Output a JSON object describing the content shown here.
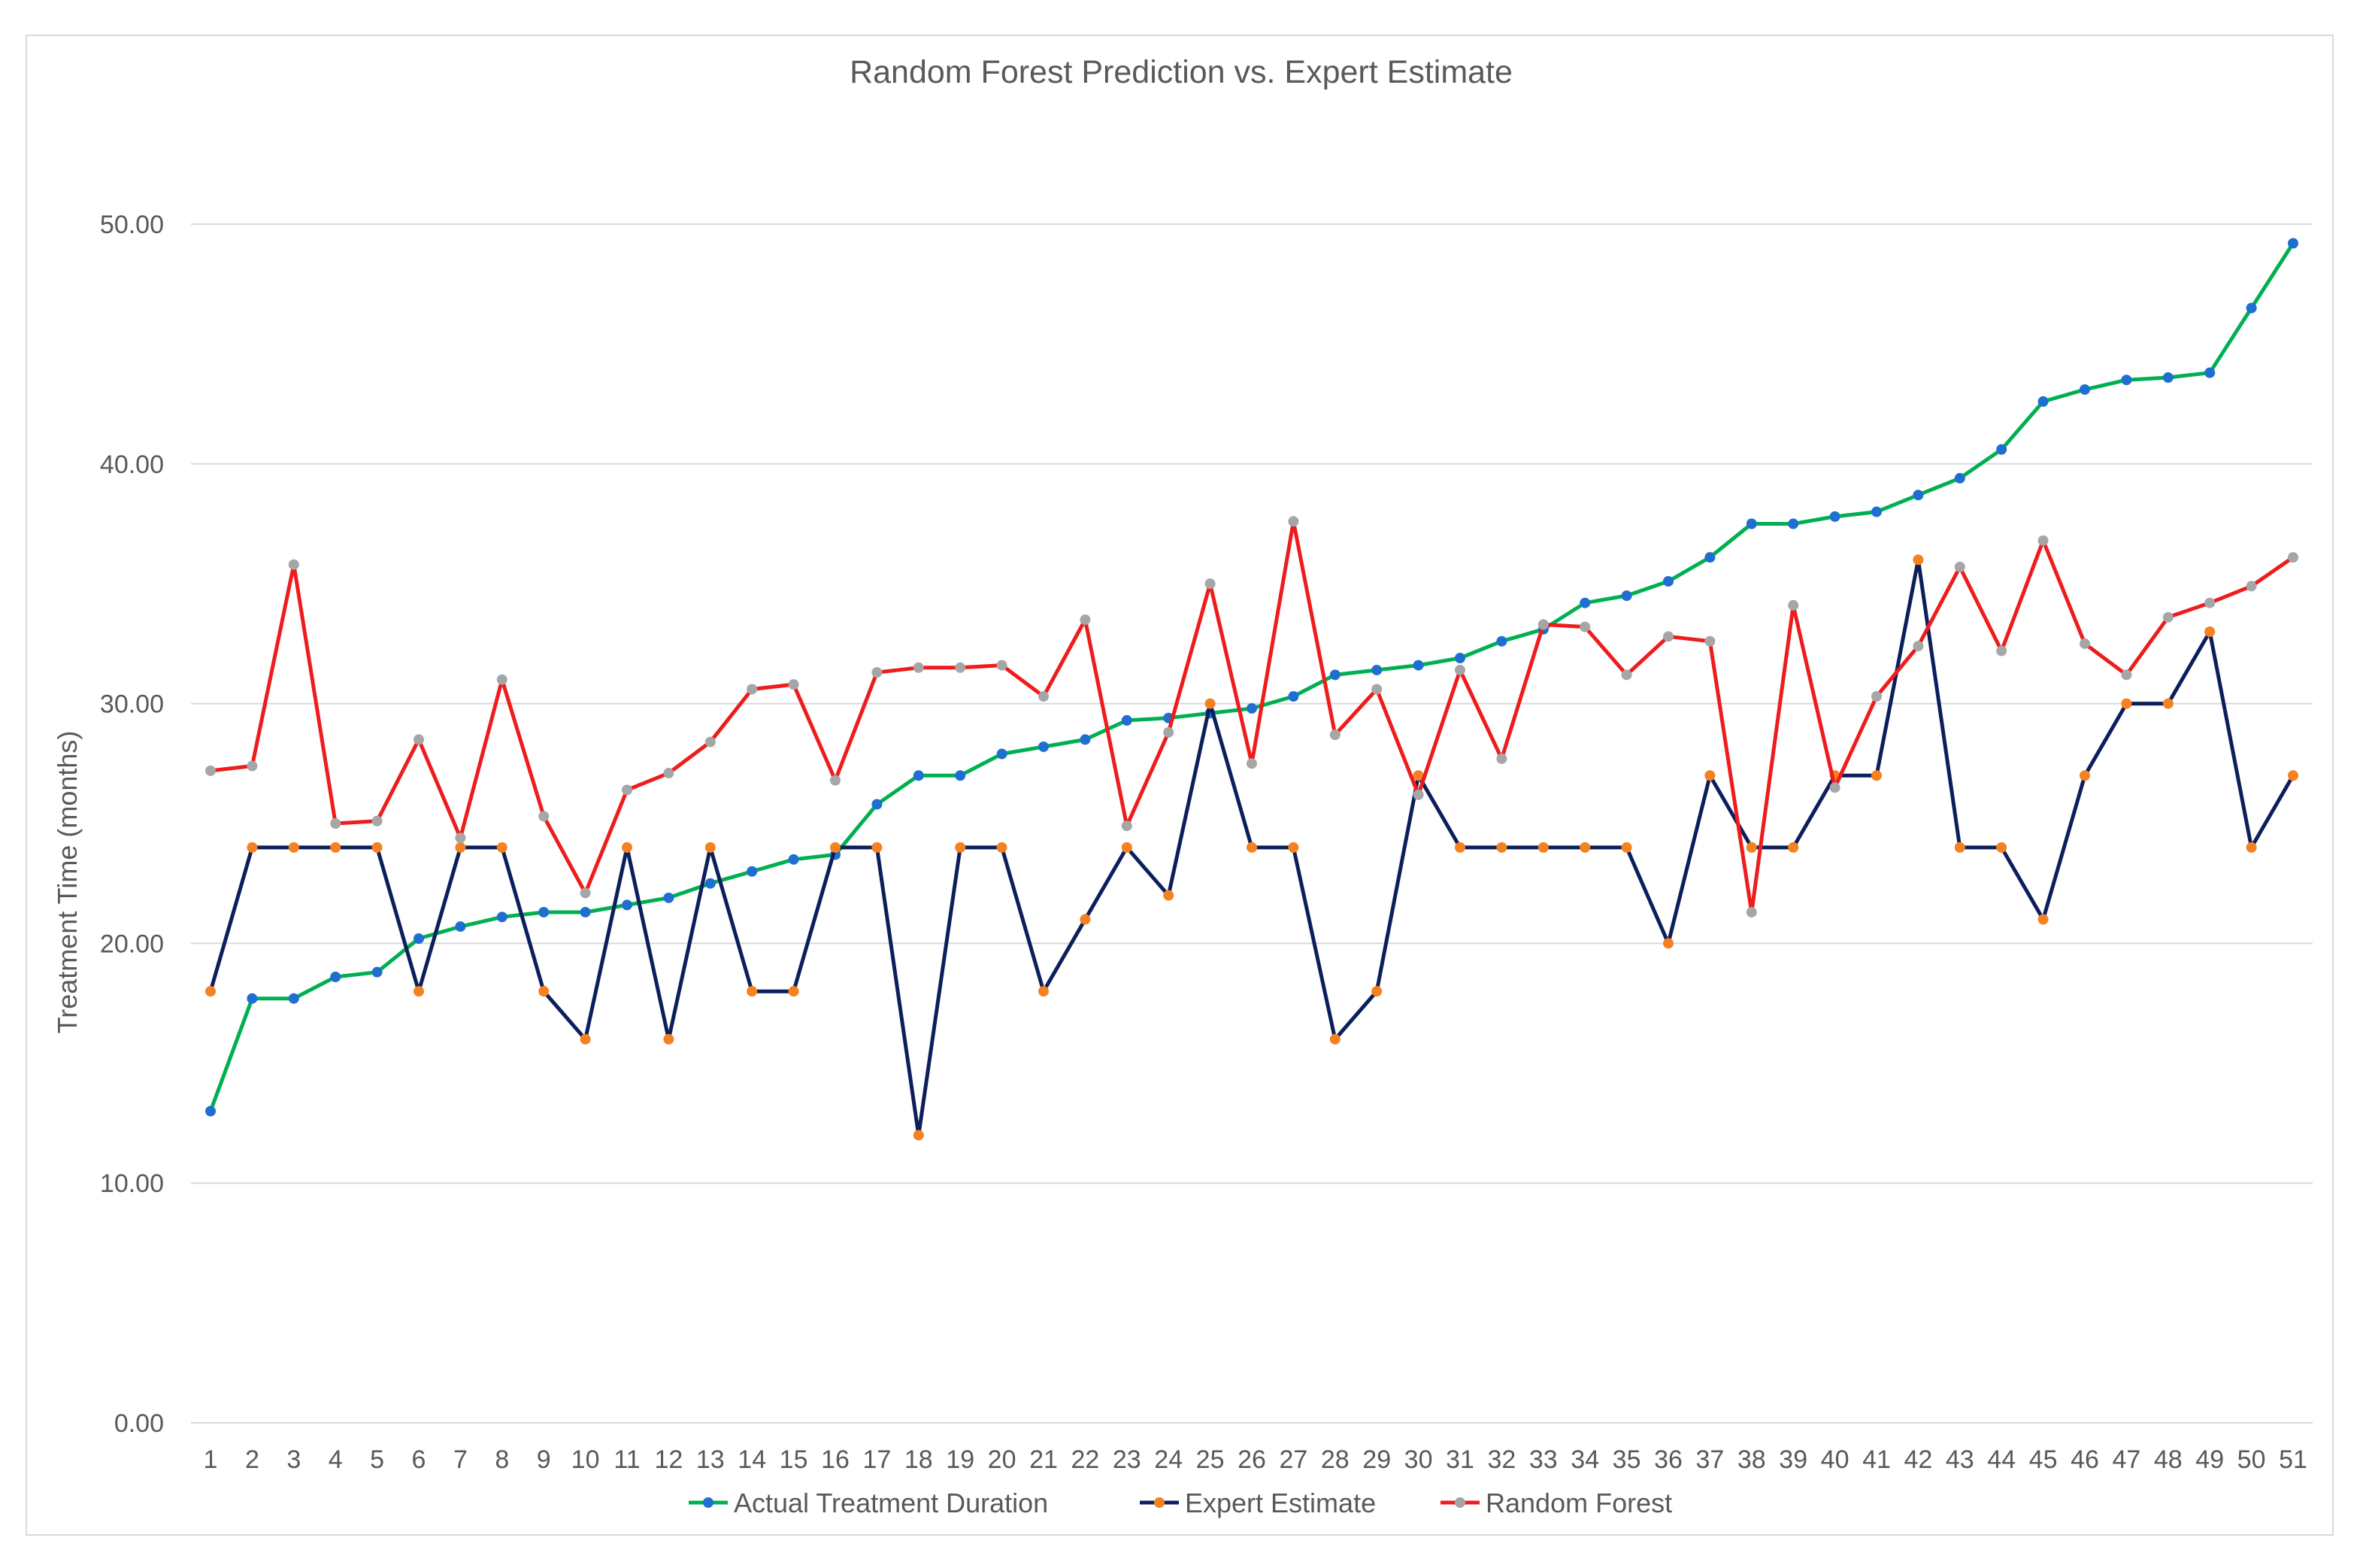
{
  "chart_data": {
    "type": "line",
    "title": "Random Forest Prediction vs. Expert Estimate",
    "xlabel": "",
    "ylabel": "Treatment Time (months)",
    "ylim": [
      0,
      50
    ],
    "y_ticks": [
      "0.00",
      "10.00",
      "20.00",
      "30.00",
      "40.00",
      "50.00"
    ],
    "grid": "horizontal",
    "legend_position": "bottom",
    "categories": [
      "1",
      "2",
      "3",
      "4",
      "5",
      "6",
      "7",
      "8",
      "9",
      "10",
      "11",
      "12",
      "13",
      "14",
      "15",
      "16",
      "17",
      "18",
      "19",
      "20",
      "21",
      "22",
      "23",
      "24",
      "25",
      "26",
      "27",
      "28",
      "29",
      "30",
      "31",
      "32",
      "33",
      "34",
      "35",
      "36",
      "37",
      "38",
      "39",
      "40",
      "41",
      "42",
      "43",
      "44",
      "45",
      "46",
      "47",
      "48",
      "49",
      "50",
      "51"
    ],
    "series": [
      {
        "name": "Actual Treatment Duration",
        "line_color": "#00b050",
        "marker_color": "#1f6fd1",
        "values": [
          13.0,
          17.7,
          17.7,
          18.6,
          18.8,
          20.2,
          20.7,
          21.1,
          21.3,
          21.3,
          21.6,
          21.9,
          22.5,
          23.0,
          23.5,
          23.7,
          25.8,
          27.0,
          27.0,
          27.9,
          28.2,
          28.5,
          29.3,
          29.4,
          29.6,
          29.8,
          30.3,
          31.2,
          31.4,
          31.6,
          31.9,
          32.6,
          33.1,
          34.2,
          34.5,
          35.1,
          36.1,
          37.5,
          37.5,
          37.8,
          38.0,
          38.7,
          39.4,
          40.6,
          42.6,
          43.1,
          43.5,
          43.6,
          43.8,
          46.5,
          49.2
        ]
      },
      {
        "name": "Expert Estimate",
        "line_color": "#0c1f5c",
        "marker_color": "#f58220",
        "values": [
          18,
          24,
          24,
          24,
          24,
          18,
          24,
          24,
          18,
          16,
          24,
          16,
          24,
          18,
          18,
          24,
          24,
          12,
          24,
          24,
          18,
          21,
          24,
          22,
          30,
          24,
          24,
          16,
          18,
          27,
          24,
          24,
          24,
          24,
          24,
          20,
          27,
          24,
          24,
          27,
          27,
          36,
          24,
          24,
          21,
          27,
          30,
          30,
          33,
          24,
          27
        ]
      },
      {
        "name": "Random Forest",
        "line_color": "#ee1c1c",
        "marker_color": "#a6a6a6",
        "values": [
          27.2,
          27.4,
          35.8,
          25.0,
          25.1,
          28.5,
          24.4,
          31.0,
          25.3,
          22.1,
          26.4,
          27.1,
          28.4,
          30.6,
          30.8,
          26.8,
          31.3,
          31.5,
          31.5,
          31.6,
          30.3,
          33.5,
          24.9,
          28.8,
          35.0,
          27.5,
          37.6,
          28.7,
          30.6,
          26.2,
          31.4,
          27.7,
          33.3,
          33.2,
          31.2,
          32.8,
          32.6,
          21.3,
          34.1,
          26.5,
          30.3,
          32.4,
          35.7,
          32.2,
          36.8,
          32.5,
          31.2,
          33.6,
          34.2,
          34.9,
          36.1
        ]
      }
    ]
  }
}
